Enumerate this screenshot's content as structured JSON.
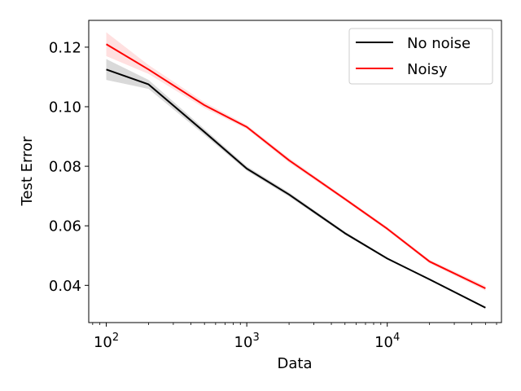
{
  "chart_data": {
    "type": "line",
    "title": "",
    "xlabel": "Data",
    "ylabel": "Test Error",
    "xscale": "log",
    "xlim": [
      75,
      65000
    ],
    "ylim": [
      0.0275,
      0.129
    ],
    "grid": false,
    "legend_position": "top-right",
    "x_ticks": [
      {
        "value": 100,
        "base": "10",
        "exp": "2"
      },
      {
        "value": 1000,
        "base": "10",
        "exp": "3"
      },
      {
        "value": 10000,
        "base": "10",
        "exp": "4"
      }
    ],
    "y_ticks": [
      {
        "value": 0.04,
        "label": "0.04"
      },
      {
        "value": 0.06,
        "label": "0.06"
      },
      {
        "value": 0.08,
        "label": "0.08"
      },
      {
        "value": 0.1,
        "label": "0.10"
      },
      {
        "value": 0.12,
        "label": "0.12"
      }
    ],
    "x": [
      100,
      200,
      500,
      1000,
      2000,
      5000,
      10000,
      20000,
      50000
    ],
    "series": [
      {
        "name": "No noise",
        "color": "#000000",
        "band_color": "#808080",
        "values": [
          0.1125,
          0.1075,
          0.0915,
          0.0792,
          0.0705,
          0.0575,
          0.049,
          0.042,
          0.0325
        ],
        "lower": [
          0.109,
          0.106,
          0.0905,
          0.0785,
          0.0698,
          0.057,
          0.0487,
          0.0417,
          0.0322
        ],
        "upper": [
          0.116,
          0.109,
          0.0925,
          0.08,
          0.0712,
          0.058,
          0.0493,
          0.0423,
          0.0328
        ]
      },
      {
        "name": "Noisy",
        "color": "#ff0000",
        "band_color": "#ff9999",
        "values": [
          0.121,
          0.1125,
          0.1005,
          0.0932,
          0.082,
          0.069,
          0.059,
          0.048,
          0.039
        ],
        "lower": [
          0.117,
          0.111,
          0.0995,
          0.0925,
          0.0812,
          0.0684,
          0.0584,
          0.0474,
          0.0382
        ],
        "upper": [
          0.125,
          0.114,
          0.1015,
          0.0939,
          0.0828,
          0.0696,
          0.0596,
          0.0486,
          0.0398
        ]
      }
    ]
  }
}
